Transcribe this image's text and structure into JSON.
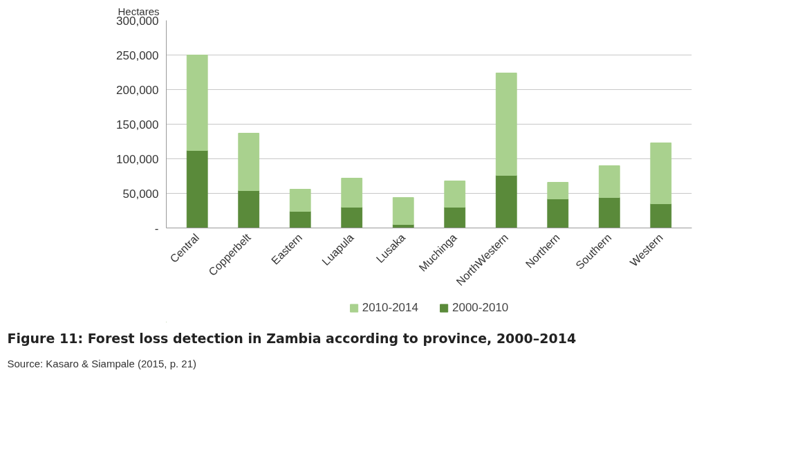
{
  "chart_data": {
    "type": "bar",
    "stacked": true,
    "title": "Figure 11:  Forest loss detection in Zambia according to province, 2000–2014",
    "ylabel": "Hectares",
    "annotations": [
      "Source: Kasaro & Siampale (2015, p. 21)"
    ],
    "categories": [
      "Central",
      "Copperbelt",
      "Eastern",
      "Luapula",
      "Lusaka",
      "Muchinga",
      "NorthWestern",
      "Northern",
      "Southern",
      "Western"
    ],
    "series": [
      {
        "name": "2000-2010",
        "color": "#5a8a3a",
        "values": [
          112000,
          54000,
          24000,
          30000,
          5000,
          30000,
          76000,
          42000,
          44000,
          35000
        ]
      },
      {
        "name": "2010-2014",
        "color": "#a9d18e",
        "values": [
          138000,
          83000,
          32000,
          42000,
          39000,
          38000,
          148000,
          24000,
          46000,
          88000
        ]
      }
    ],
    "ylim": [
      0,
      300000
    ],
    "yticks": [
      {
        "value": 0,
        "label": "-"
      },
      {
        "value": 50000,
        "label": "50,000"
      },
      {
        "value": 100000,
        "label": "100,000"
      },
      {
        "value": 150000,
        "label": "150,000"
      },
      {
        "value": 200000,
        "label": "200,000"
      },
      {
        "value": 250000,
        "label": "250,000"
      },
      {
        "value": 300000,
        "label": "300,000"
      }
    ],
    "grid": "y",
    "legend": "bottom"
  }
}
